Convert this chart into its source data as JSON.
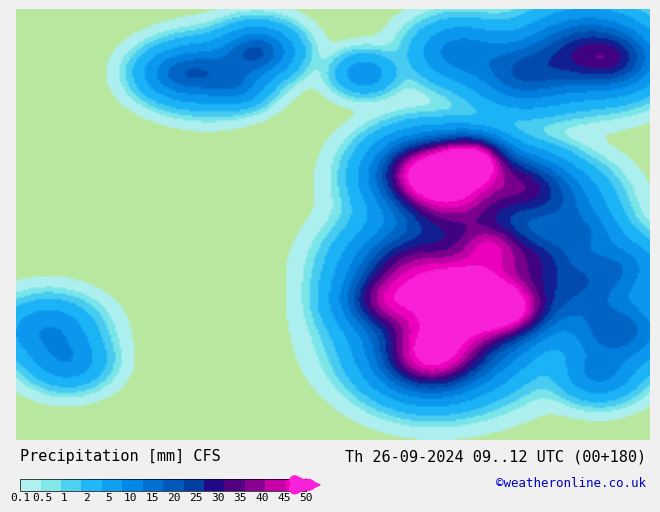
{
  "title_left": "Precipitation [mm] CFS",
  "title_right": "Th 26-09-2024 09..12 UTC (00+180)",
  "credit": "©weatheronline.co.uk",
  "colorbar_labels": [
    "0.1",
    "0.5",
    "1",
    "2",
    "5",
    "10",
    "15",
    "20",
    "25",
    "30",
    "35",
    "40",
    "45",
    "50"
  ],
  "colorbar_colors": [
    "#b0f0f0",
    "#80e8e8",
    "#50d0f0",
    "#20b8f8",
    "#10a0f0",
    "#0088e8",
    "#0070d0",
    "#0058b8",
    "#0040a0",
    "#200888",
    "#500080",
    "#880090",
    "#c800a8",
    "#f000c0",
    "#f820d8"
  ],
  "bg_color": "#b8e8a0",
  "map_bg": "#b8e8a0",
  "font_size_title": 11,
  "font_size_credit": 9,
  "font_size_labels": 8
}
